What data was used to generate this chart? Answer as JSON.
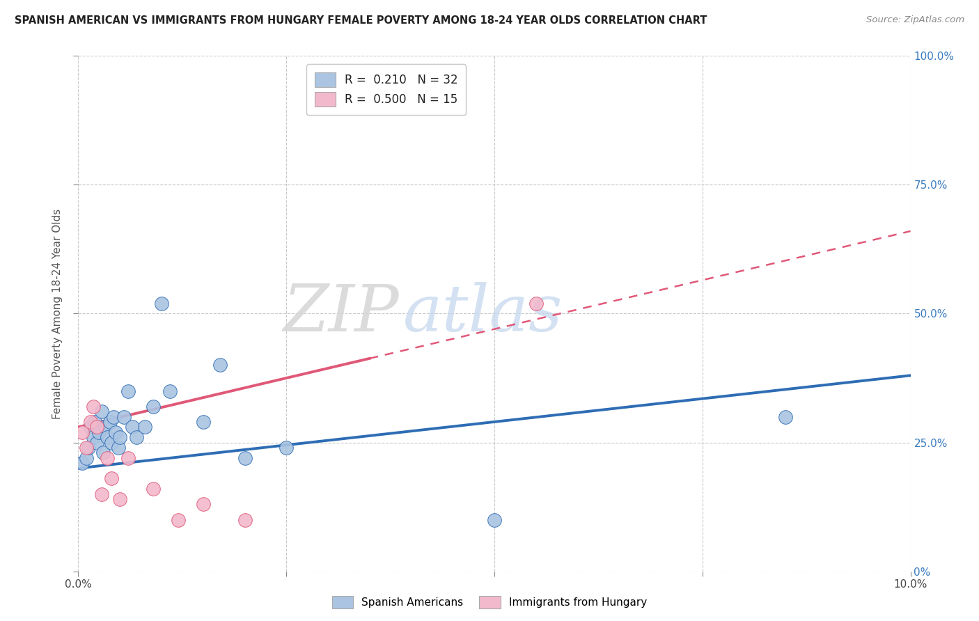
{
  "title": "SPANISH AMERICAN VS IMMIGRANTS FROM HUNGARY FEMALE POVERTY AMONG 18-24 YEAR OLDS CORRELATION CHART",
  "source": "Source: ZipAtlas.com",
  "ylabel": "Female Poverty Among 18-24 Year Olds",
  "x_min": 0.0,
  "x_max": 10.0,
  "y_min": 0.0,
  "y_max": 100.0,
  "legend_blue_r": "0.210",
  "legend_blue_n": "32",
  "legend_pink_r": "0.500",
  "legend_pink_n": "15",
  "legend_series_blue": "Spanish Americans",
  "legend_series_pink": "Immigrants from Hungary",
  "blue_color": "#aac4e2",
  "pink_color": "#f2b8cc",
  "blue_line_color": "#2e6db4",
  "pink_line_color": "#e05878",
  "watermark_zip": "ZIP",
  "watermark_atlas": "atlas",
  "blue_scatter_x": [
    0.05,
    0.1,
    0.12,
    0.15,
    0.18,
    0.2,
    0.22,
    0.25,
    0.28,
    0.3,
    0.32,
    0.35,
    0.38,
    0.4,
    0.42,
    0.45,
    0.48,
    0.5,
    0.55,
    0.6,
    0.65,
    0.7,
    0.8,
    0.9,
    1.0,
    1.1,
    1.5,
    1.7,
    2.0,
    2.5,
    5.0,
    8.5
  ],
  "blue_scatter_y": [
    21,
    22,
    24,
    28,
    26,
    29,
    25,
    27,
    31,
    23,
    28,
    26,
    29,
    25,
    30,
    27,
    24,
    26,
    30,
    35,
    28,
    26,
    28,
    32,
    52,
    35,
    29,
    40,
    22,
    24,
    10,
    30
  ],
  "pink_scatter_x": [
    0.05,
    0.1,
    0.15,
    0.18,
    0.22,
    0.28,
    0.35,
    0.4,
    0.5,
    0.6,
    0.9,
    1.2,
    1.5,
    2.0,
    5.5
  ],
  "pink_scatter_y": [
    27,
    24,
    29,
    32,
    28,
    15,
    22,
    18,
    14,
    22,
    16,
    10,
    13,
    10,
    52
  ],
  "blue_line_y_intercept": 20.0,
  "blue_line_slope": 1.8,
  "pink_line_y_intercept": 28.0,
  "pink_line_slope": 3.8,
  "pink_solid_x_end": 3.5,
  "pink_dashed_x_start": 3.5,
  "pink_dashed_x_end": 10.0
}
